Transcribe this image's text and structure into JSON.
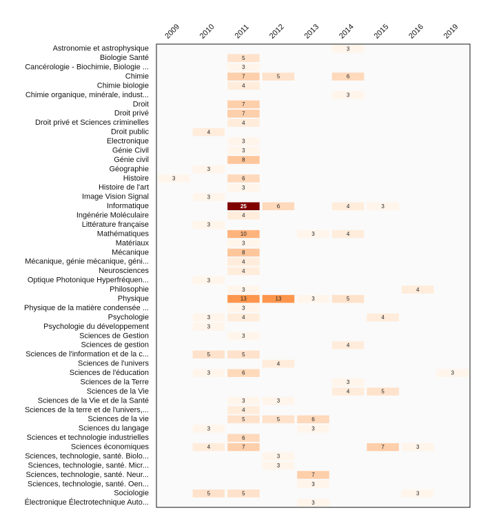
{
  "chart_data": {
    "type": "heatmap",
    "title": "",
    "xlabel": "",
    "ylabel": "",
    "columns": [
      "2009",
      "2010",
      "2011",
      "2012",
      "2013",
      "2014",
      "2015",
      "2016",
      "2019"
    ],
    "rows": [
      "Astronomie et astrophysique",
      "Biologie Santé",
      "Cancérologie - Biochimie, Biologie ...",
      "Chimie",
      "Chimie biologie",
      "Chimie organique, minérale, indust...",
      "Droit",
      "Droit privé",
      "Droit privé et Sciences criminelles",
      "Droit public",
      "Electronique",
      "Génie Civil",
      "Génie civil",
      "Géographie",
      "Histoire",
      "Histoire de l'art",
      "Image Vision Signal",
      "Informatique",
      "Ingénérie Moléculaire",
      "Littérature française",
      "Mathématiques",
      "Matériaux",
      "Mécanique",
      "Mécanique, génie mécanique, géni...",
      "Neurosciences",
      "Optique Photonique Hyperfréquen...",
      "Philosophie",
      "Physique",
      "Physique de la matière condensée ...",
      "Psychologie",
      "Psychologie du développement",
      "Sciences de Gestion",
      "Sciences de gestion",
      "Sciences de l'information et de la c...",
      "Sciences de l'univers",
      "Sciences de l'éducation",
      "Sciences de la Terre",
      "Sciences de la Vie",
      "Sciences de la Vie et de la Santé",
      "Sciences de la terre et de l'univers,...",
      "Sciences de la vie",
      "Sciences du langage",
      "Sciences et technologie industrielles",
      "Sciences économiques",
      "Sciences, technologie, santé. Biolo...",
      "Sciences, technologie, santé. Micr...",
      "Sciences, technologie, santé. Neur...",
      "Sciences, technologie, santé. Oen...",
      "Sociologie",
      "Électronique Électrotechnique Auto..."
    ],
    "cells": [
      {
        "row": 0,
        "col": "2014",
        "value": 3
      },
      {
        "row": 1,
        "col": "2011",
        "value": 5
      },
      {
        "row": 2,
        "col": "2011",
        "value": 3
      },
      {
        "row": 3,
        "col": "2011",
        "value": 7
      },
      {
        "row": 3,
        "col": "2012",
        "value": 5
      },
      {
        "row": 3,
        "col": "2014",
        "value": 6
      },
      {
        "row": 4,
        "col": "2011",
        "value": 4
      },
      {
        "row": 5,
        "col": "2014",
        "value": 3
      },
      {
        "row": 6,
        "col": "2011",
        "value": 7
      },
      {
        "row": 7,
        "col": "2011",
        "value": 7
      },
      {
        "row": 8,
        "col": "2011",
        "value": 4
      },
      {
        "row": 9,
        "col": "2010",
        "value": 4
      },
      {
        "row": 10,
        "col": "2011",
        "value": 3
      },
      {
        "row": 11,
        "col": "2011",
        "value": 3
      },
      {
        "row": 12,
        "col": "2011",
        "value": 8
      },
      {
        "row": 13,
        "col": "2010",
        "value": 3
      },
      {
        "row": 14,
        "col": "2009",
        "value": 3
      },
      {
        "row": 14,
        "col": "2011",
        "value": 6
      },
      {
        "row": 15,
        "col": "2011",
        "value": 3
      },
      {
        "row": 16,
        "col": "2010",
        "value": 3
      },
      {
        "row": 17,
        "col": "2011",
        "value": 25
      },
      {
        "row": 17,
        "col": "2012",
        "value": 6
      },
      {
        "row": 17,
        "col": "2014",
        "value": 4
      },
      {
        "row": 17,
        "col": "2015",
        "value": 3
      },
      {
        "row": 18,
        "col": "2011",
        "value": 4
      },
      {
        "row": 19,
        "col": "2010",
        "value": 3
      },
      {
        "row": 20,
        "col": "2011",
        "value": 10
      },
      {
        "row": 20,
        "col": "2013",
        "value": 3
      },
      {
        "row": 20,
        "col": "2014",
        "value": 4
      },
      {
        "row": 21,
        "col": "2011",
        "value": 3
      },
      {
        "row": 22,
        "col": "2011",
        "value": 8
      },
      {
        "row": 23,
        "col": "2011",
        "value": 4
      },
      {
        "row": 24,
        "col": "2011",
        "value": 4
      },
      {
        "row": 25,
        "col": "2010",
        "value": 3
      },
      {
        "row": 26,
        "col": "2011",
        "value": 3
      },
      {
        "row": 26,
        "col": "2016",
        "value": 4
      },
      {
        "row": 27,
        "col": "2011",
        "value": 13
      },
      {
        "row": 27,
        "col": "2012",
        "value": 13
      },
      {
        "row": 27,
        "col": "2013",
        "value": 3
      },
      {
        "row": 27,
        "col": "2014",
        "value": 5
      },
      {
        "row": 28,
        "col": "2011",
        "value": 3
      },
      {
        "row": 29,
        "col": "2010",
        "value": 3
      },
      {
        "row": 29,
        "col": "2011",
        "value": 4
      },
      {
        "row": 29,
        "col": "2015",
        "value": 4
      },
      {
        "row": 30,
        "col": "2010",
        "value": 3
      },
      {
        "row": 31,
        "col": "2011",
        "value": 3
      },
      {
        "row": 32,
        "col": "2014",
        "value": 4
      },
      {
        "row": 33,
        "col": "2010",
        "value": 5
      },
      {
        "row": 33,
        "col": "2011",
        "value": 5
      },
      {
        "row": 34,
        "col": "2012",
        "value": 4
      },
      {
        "row": 35,
        "col": "2010",
        "value": 3
      },
      {
        "row": 35,
        "col": "2011",
        "value": 6
      },
      {
        "row": 35,
        "col": "2019",
        "value": 3
      },
      {
        "row": 36,
        "col": "2014",
        "value": 3
      },
      {
        "row": 37,
        "col": "2014",
        "value": 4
      },
      {
        "row": 37,
        "col": "2015",
        "value": 5
      },
      {
        "row": 38,
        "col": "2011",
        "value": 3
      },
      {
        "row": 38,
        "col": "2012",
        "value": 3
      },
      {
        "row": 39,
        "col": "2011",
        "value": 4
      },
      {
        "row": 40,
        "col": "2011",
        "value": 5
      },
      {
        "row": 40,
        "col": "2012",
        "value": 5
      },
      {
        "row": 40,
        "col": "2013",
        "value": 6
      },
      {
        "row": 41,
        "col": "2010",
        "value": 3
      },
      {
        "row": 41,
        "col": "2013",
        "value": 3
      },
      {
        "row": 42,
        "col": "2011",
        "value": 6
      },
      {
        "row": 43,
        "col": "2010",
        "value": 4
      },
      {
        "row": 43,
        "col": "2011",
        "value": 7
      },
      {
        "row": 43,
        "col": "2015",
        "value": 7
      },
      {
        "row": 43,
        "col": "2016",
        "value": 3
      },
      {
        "row": 44,
        "col": "2012",
        "value": 3
      },
      {
        "row": 45,
        "col": "2012",
        "value": 3
      },
      {
        "row": 46,
        "col": "2013",
        "value": 7
      },
      {
        "row": 47,
        "col": "2013",
        "value": 3
      },
      {
        "row": 48,
        "col": "2010",
        "value": 5
      },
      {
        "row": 48,
        "col": "2011",
        "value": 5
      },
      {
        "row": 48,
        "col": "2016",
        "value": 3
      },
      {
        "row": 49,
        "col": "2013",
        "value": 3
      }
    ],
    "value_range": [
      3,
      25
    ],
    "color_scale": {
      "low": "#fff5eb",
      "mid": "#fd8d3c",
      "high": "#7f0000"
    },
    "plot_background": "#fafafa",
    "cell_text_color_dark": "#222222",
    "cell_text_color_light": "#ffffff",
    "legend": "none",
    "grid": false
  }
}
